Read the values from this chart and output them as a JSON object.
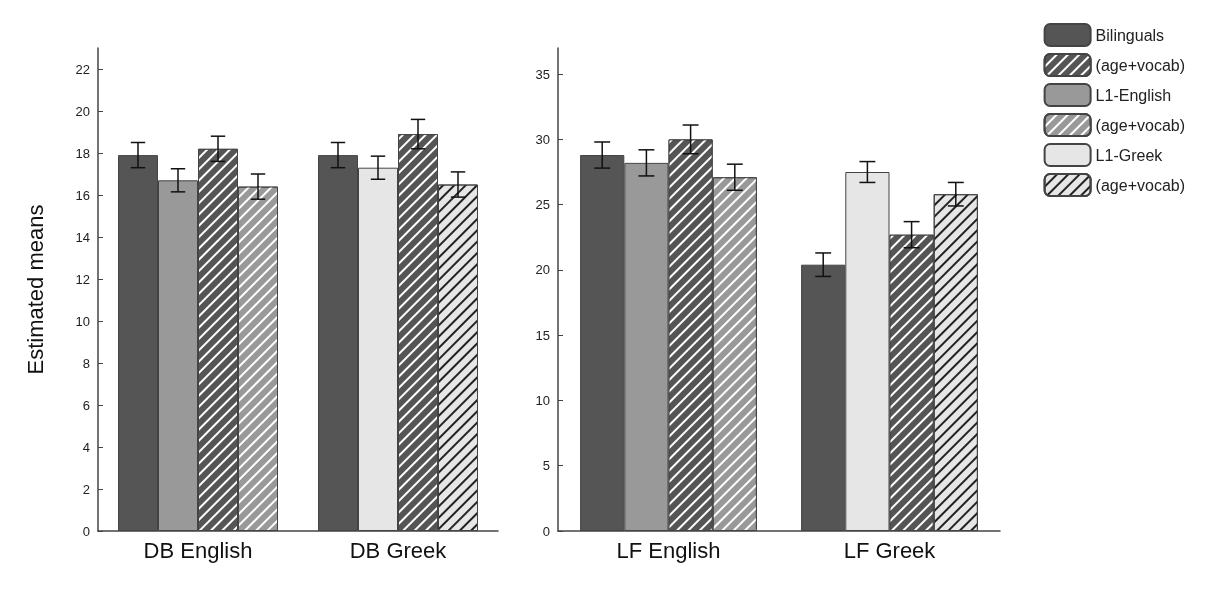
{
  "chart_data": [
    {
      "type": "bar",
      "ylabel": "Estimated means",
      "categories": [
        "DB English",
        "DB Greek"
      ],
      "ylim": [
        0,
        23
      ],
      "yticks": [
        0,
        2,
        4,
        6,
        8,
        10,
        12,
        14,
        16,
        18,
        20,
        22
      ],
      "series": [
        {
          "color": "#555555",
          "values": [
            17.9,
            17.9
          ],
          "errors": [
            0.6,
            0.6
          ]
        },
        {
          "color": "#999999",
          "values": [
            16.7,
            null
          ],
          "errors": [
            0.55,
            null
          ]
        },
        {
          "color": "#555555",
          "values": [
            18.2,
            18.9
          ],
          "errors": [
            0.6,
            0.7
          ]
        },
        {
          "color": "#999999",
          "values": [
            16.4,
            null
          ],
          "errors": [
            0.6,
            null
          ]
        },
        {
          "color": "#e6e6e6",
          "values": [
            null,
            17.3
          ],
          "errors": [
            null,
            0.55
          ]
        },
        {
          "color": "#e6e6e6",
          "values": [
            null,
            16.5
          ],
          "errors": [
            null,
            0.6
          ]
        }
      ]
    },
    {
      "type": "bar",
      "categories": [
        "LF English",
        "LF Greek"
      ],
      "ylim": [
        0,
        37
      ],
      "yticks": [
        0,
        5,
        10,
        15,
        20,
        25,
        30,
        35
      ],
      "legend": "top right",
      "series": [
        {
          "name": "Bilinguals",
          "color": "#555555",
          "values": [
            28.8,
            20.4
          ],
          "errors": [
            1.0,
            0.9
          ]
        },
        {
          "name": "L1-English",
          "color": "#999999",
          "values": [
            28.2,
            null
          ],
          "errors": [
            1.0,
            null
          ]
        },
        {
          "name": "(age+vocab)",
          "color": "#555555",
          "values": [
            30.0,
            22.7
          ],
          "errors": [
            1.1,
            1.0
          ]
        },
        {
          "name": "(age+vocab)",
          "color": "#999999",
          "values": [
            27.1,
            null
          ],
          "errors": [
            1.0,
            null
          ]
        },
        {
          "name": "L1-Greek",
          "color": "#e6e6e6",
          "values": [
            null,
            27.5
          ],
          "errors": [
            null,
            0.8
          ]
        },
        {
          "name": "(age+vocab)",
          "color": "#e6e6e6",
          "values": [
            null,
            25.8
          ],
          "errors": [
            null,
            0.9
          ]
        }
      ]
    }
  ]
}
